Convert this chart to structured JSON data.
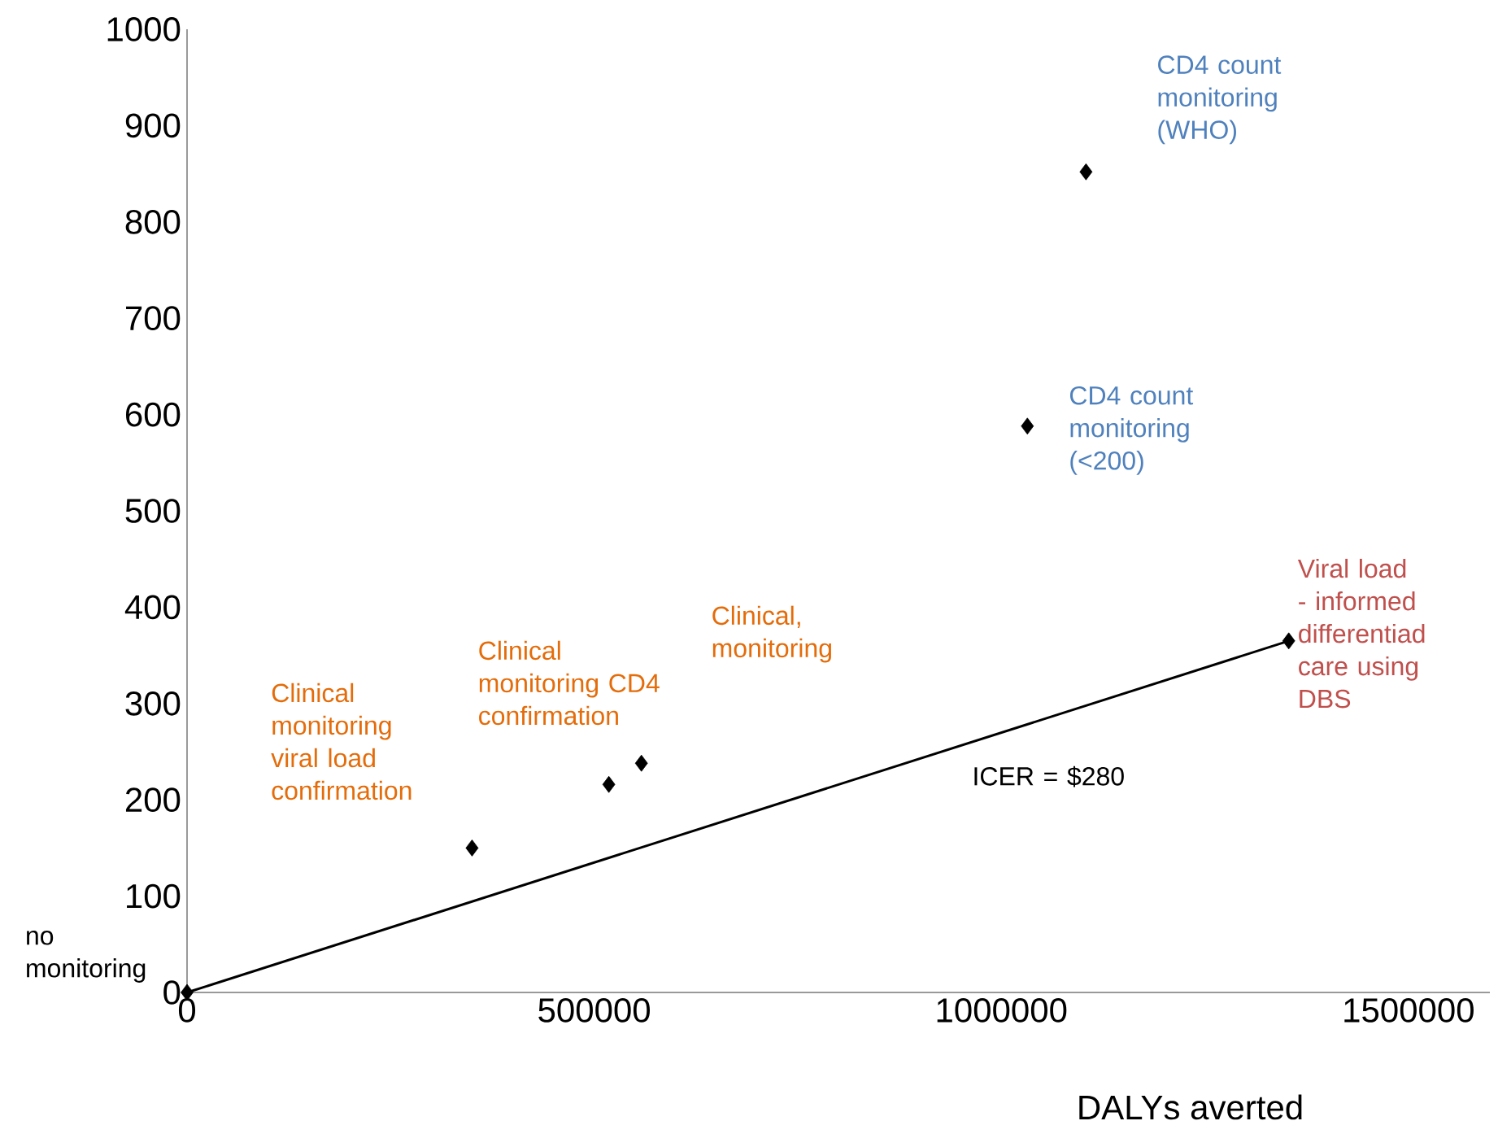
{
  "chart_data": {
    "type": "scatter",
    "xlabel": "DALYs averted",
    "series": [
      {
        "color": "#000000",
        "marker": "diamond",
        "x": [
          0,
          350000,
          518000,
          558000,
          1032000,
          1104000,
          1353000
        ],
        "values": [
          0,
          150,
          216,
          238,
          588,
          852,
          365
        ]
      },
      {
        "type": "line",
        "color": "#000000",
        "marker": "none",
        "x": [
          0,
          1353000
        ],
        "values": [
          0,
          365
        ]
      }
    ],
    "annotations": [
      {
        "text": "no monitoring",
        "x": 0,
        "y": 0
      },
      "Clinical monitoring viral load confirmation",
      {
        "text": "Clinical monitoring CD4 confirmation",
        "x": 518000,
        "y": 216
      },
      "Clinical, monitoring",
      {
        "text": "CD4 count monitoring (<200)",
        "x": 1032000,
        "y": 588
      },
      {
        "text": "CD4 count monitoring (WHO)",
        "x": 1104000,
        "y": 852
      },
      {
        "text": "Viral load - informed differentiad care  using DBS",
        "x": 1353000,
        "y": 365
      },
      {
        "text": "ICER = $280",
        "x": 1058000,
        "y": 285
      }
    ],
    "xlim": [
      0,
      1600000
    ],
    "ylim": [
      0,
      1000
    ],
    "xticks": [
      0,
      500000,
      1000000,
      1500000
    ],
    "yticks": [
      0,
      100,
      200,
      300,
      400,
      500,
      600,
      700,
      800,
      900,
      1000
    ],
    "grid": false
  }
}
